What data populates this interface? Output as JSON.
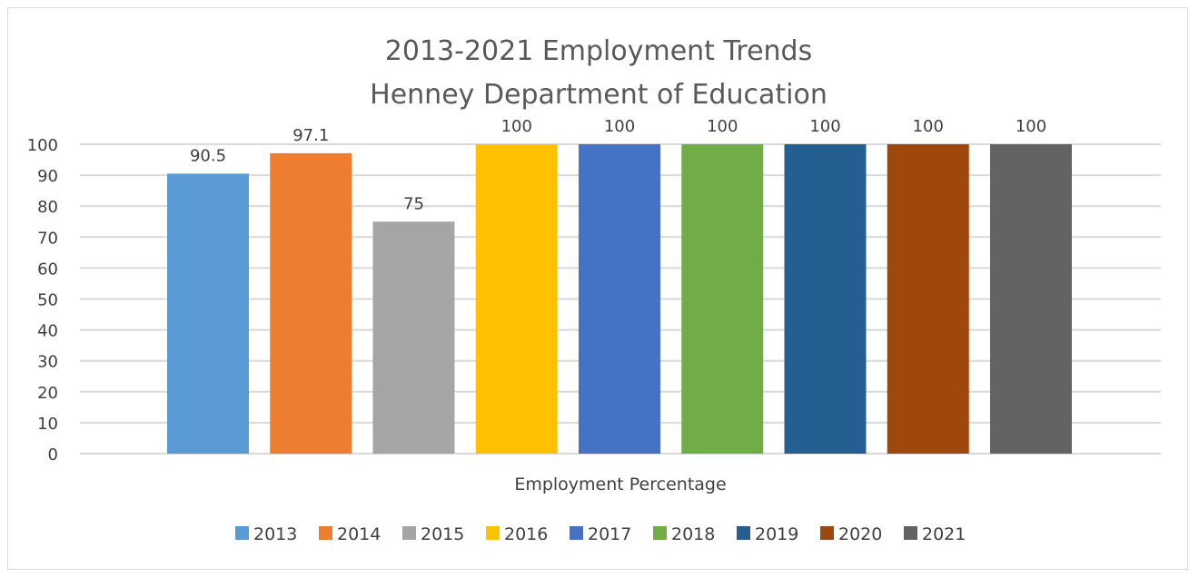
{
  "chart_data": {
    "type": "bar",
    "title_line1": "2013-2021 Employment Trends",
    "title_line2": "Henney Department of Education",
    "xlabel": "Employment Percentage",
    "ylabel": "",
    "ylim": [
      0,
      100
    ],
    "yticks": [
      "0",
      "10",
      "20",
      "30",
      "40",
      "50",
      "60",
      "70",
      "80",
      "90",
      "100"
    ],
    "grid": true,
    "legend_position": "bottom",
    "series": [
      {
        "name": "2013",
        "value": 90.5,
        "label": "90.5",
        "color": "#5b9bd5"
      },
      {
        "name": "2014",
        "value": 97.1,
        "label": "97.1",
        "color": "#ed7d31"
      },
      {
        "name": "2015",
        "value": 75,
        "label": "75",
        "color": "#a5a5a5"
      },
      {
        "name": "2016",
        "value": 100,
        "label": "100",
        "color": "#ffc000"
      },
      {
        "name": "2017",
        "value": 100,
        "label": "100",
        "color": "#4472c4"
      },
      {
        "name": "2018",
        "value": 100,
        "label": "100",
        "color": "#70ad47"
      },
      {
        "name": "2019",
        "value": 100,
        "label": "100",
        "color": "#255e91"
      },
      {
        "name": "2020",
        "value": 100,
        "label": "100",
        "color": "#9e480e"
      },
      {
        "name": "2021",
        "value": 100,
        "label": "100",
        "color": "#636363"
      }
    ]
  }
}
